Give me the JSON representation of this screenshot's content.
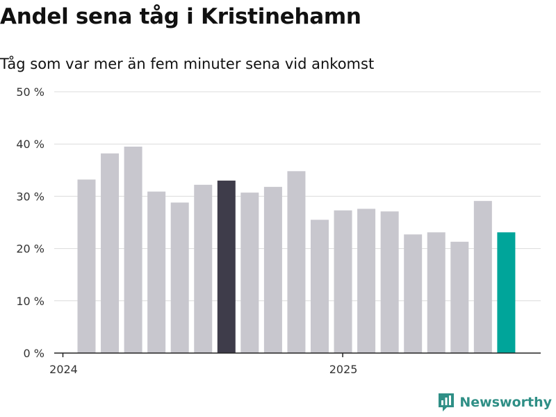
{
  "title": "Andel sena tåg i Kristinehamn",
  "subtitle": "Tåg som var mer än fem minuter sena vid ankomst",
  "brand": {
    "name": "Newsworthy",
    "icon": "bar-chart-logo-icon"
  },
  "colors": {
    "bar": "#c8c7ce",
    "highlight_dark": "#3e3c4a",
    "highlight_latest": "#00a59a",
    "grid": "#dcdcdc",
    "axis": "#222222",
    "brand": "#2f8f86"
  },
  "chart_data": {
    "type": "bar",
    "x": [
      "2024-01",
      "2024-02",
      "2024-03",
      "2024-04",
      "2024-05",
      "2024-06",
      "2024-07",
      "2024-08",
      "2024-09",
      "2024-10",
      "2024-11",
      "2024-12",
      "2025-01",
      "2025-02",
      "2025-03",
      "2025-04",
      "2025-05",
      "2025-06",
      "2025-07"
    ],
    "values": [
      33.2,
      38.2,
      39.5,
      30.9,
      28.8,
      32.2,
      33.0,
      30.7,
      31.8,
      34.8,
      25.5,
      27.3,
      27.6,
      27.1,
      22.7,
      23.1,
      21.3,
      29.1,
      23.1
    ],
    "highlight": [
      {
        "x": "2024-07",
        "color": "#3e3c4a"
      },
      {
        "x": "2025-07",
        "color": "#00a59a"
      }
    ],
    "ylim": [
      0,
      50
    ],
    "yticks": [
      0,
      10,
      20,
      30,
      40,
      50
    ],
    "ytick_labels": [
      "0 %",
      "10 %",
      "20 %",
      "30 %",
      "40 %",
      "50 %"
    ],
    "xtick_labels": [
      {
        "x": "2024-01",
        "label": "2024"
      },
      {
        "x": "2025-01",
        "label": "2025"
      }
    ],
    "unit": "%",
    "grid": true,
    "legend": "none"
  }
}
